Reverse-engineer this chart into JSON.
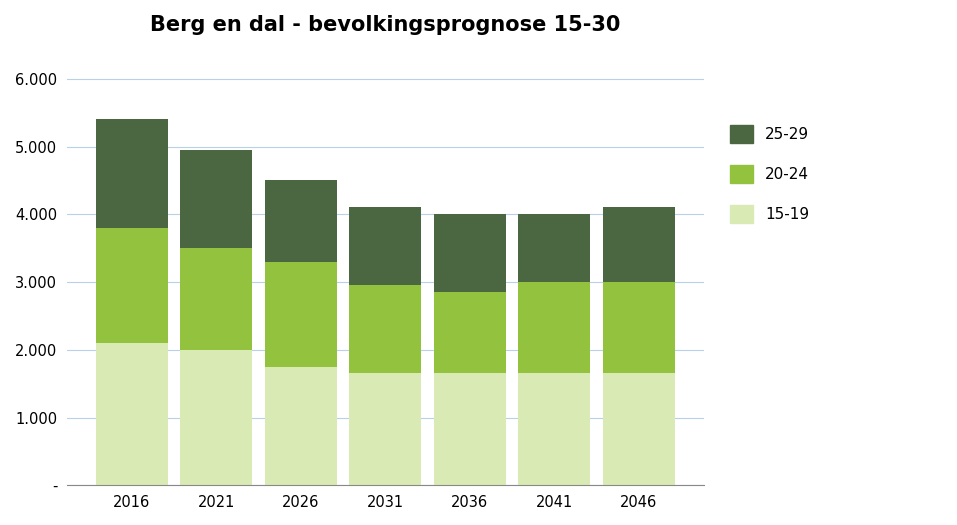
{
  "title": "Berg en dal - bevolkingsprognose 15-30",
  "categories": [
    2016,
    2021,
    2026,
    2031,
    2036,
    2041,
    2046
  ],
  "series": {
    "15-19": [
      2100,
      2000,
      1750,
      1650,
      1650,
      1650,
      1650
    ],
    "20-24": [
      1700,
      1500,
      1550,
      1300,
      1200,
      1350,
      1350
    ],
    "25-29": [
      1600,
      1450,
      1200,
      1150,
      1150,
      1000,
      1100
    ]
  },
  "colors": {
    "15-19": "#daeab4",
    "20-24": "#92c23e",
    "25-29": "#4a6741"
  },
  "ylim": [
    0,
    6500
  ],
  "yticks": [
    0,
    1000,
    2000,
    3000,
    4000,
    5000,
    6000
  ],
  "ytick_labels": [
    "-",
    "1.000",
    "2.000",
    "3.000",
    "4.000",
    "5.000",
    "6.000"
  ],
  "legend_order": [
    "25-29",
    "20-24",
    "15-19"
  ],
  "bar_width": 0.85,
  "background_color": "#ffffff",
  "grid_color": "#b8d0e8",
  "title_fontsize": 15,
  "border_color": "#a0a0a0"
}
